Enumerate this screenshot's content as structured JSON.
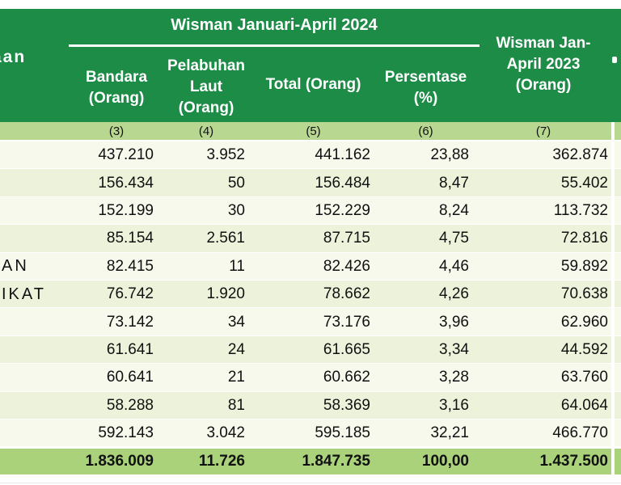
{
  "table": {
    "header": {
      "col1_fragment": "aan",
      "group_2024": "Wisman Januari-April 2024",
      "col_bandara": [
        "Bandara",
        "(Orang)"
      ],
      "col_pelabuhan": [
        "Pelabuhan",
        "Laut",
        "(Orang)"
      ],
      "col_total": "Total (Orang)",
      "col_persentase": [
        "Persentase",
        "(%)"
      ],
      "col_2023": [
        "Wisman Jan-",
        "April 2023",
        "(Orang)"
      ]
    },
    "column_index_row": [
      "(3)",
      "(4)",
      "(5)",
      "(6)",
      "(7)"
    ],
    "rows": [
      {
        "label": "",
        "bandara": "437.210",
        "pelabuhan": "3.952",
        "total": "441.162",
        "persentase": "23,88",
        "w2023": "362.874"
      },
      {
        "label": "",
        "bandara": "156.434",
        "pelabuhan": "50",
        "total": "156.484",
        "persentase": "8,47",
        "w2023": "55.402"
      },
      {
        "label": "",
        "bandara": "152.199",
        "pelabuhan": "30",
        "total": "152.229",
        "persentase": "8,24",
        "w2023": "113.732"
      },
      {
        "label": "",
        "bandara": "85.154",
        "pelabuhan": "2.561",
        "total": "87.715",
        "persentase": "4,75",
        "w2023": "72.816"
      },
      {
        "label": "AN",
        "bandara": "82.415",
        "pelabuhan": "11",
        "total": "82.426",
        "persentase": "4,46",
        "w2023": "59.892"
      },
      {
        "label": "IKAT",
        "bandara": "76.742",
        "pelabuhan": "1.920",
        "total": "78.662",
        "persentase": "4,26",
        "w2023": "70.638"
      },
      {
        "label": "",
        "bandara": "73.142",
        "pelabuhan": "34",
        "total": "73.176",
        "persentase": "3,96",
        "w2023": "62.960"
      },
      {
        "label": "",
        "bandara": "61.641",
        "pelabuhan": "24",
        "total": "61.665",
        "persentase": "3,34",
        "w2023": "44.592"
      },
      {
        "label": "",
        "bandara": "60.641",
        "pelabuhan": "21",
        "total": "60.662",
        "persentase": "3,28",
        "w2023": "63.760"
      },
      {
        "label": "",
        "bandara": "58.288",
        "pelabuhan": "81",
        "total": "58.369",
        "persentase": "3,16",
        "w2023": "64.064"
      },
      {
        "label": "",
        "bandara": "592.143",
        "pelabuhan": "3.042",
        "total": "595.185",
        "persentase": "32,21",
        "w2023": "466.770"
      }
    ],
    "total_row": {
      "bandara": "1.836.009",
      "pelabuhan": "11.726",
      "total": "1.847.735",
      "persentase": "100,00",
      "w2023": "1.437.500"
    }
  },
  "colors": {
    "header_green": "#1c8c47",
    "index_band_green": "#b8d892",
    "total_row_green": "#a9d27a",
    "row_stripe_light": "#f6f9ec",
    "row_stripe_dark": "#edf3da",
    "header_text": "#ffffff",
    "body_text": "#111111"
  }
}
